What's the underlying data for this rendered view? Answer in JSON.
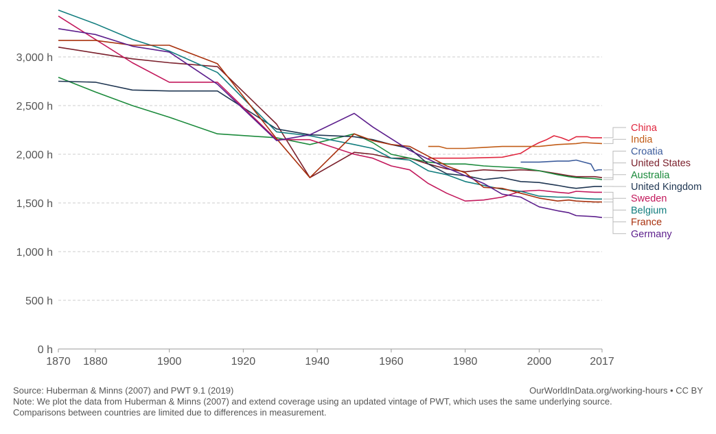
{
  "chart_data": {
    "type": "line",
    "title": "",
    "xlabel": "",
    "ylabel": "",
    "xlim": [
      1870,
      2017
    ],
    "ylim": [
      0,
      3500
    ],
    "grid": "horizontal dashed",
    "legend": "right, labels at line ends",
    "x_ticks": [
      1870,
      1880,
      1900,
      1920,
      1940,
      1960,
      1980,
      2000,
      2017
    ],
    "y_ticks": [
      {
        "value": 0,
        "label": "0 h"
      },
      {
        "value": 500,
        "label": "500 h"
      },
      {
        "value": 1000,
        "label": "1,000 h"
      },
      {
        "value": 1500,
        "label": "1,500 h"
      },
      {
        "value": 2000,
        "label": "2,000 h"
      },
      {
        "value": 2500,
        "label": "2,500 h"
      },
      {
        "value": 3000,
        "label": "3,000 h"
      }
    ],
    "series": [
      {
        "name": "China",
        "color": "#e0263e",
        "end_value": 2170,
        "points": [
          [
            1970,
            1960
          ],
          [
            1980,
            1960
          ],
          [
            1990,
            1970
          ],
          [
            1995,
            2010
          ],
          [
            1998,
            2080
          ],
          [
            2000,
            2120
          ],
          [
            2002,
            2150
          ],
          [
            2004,
            2190
          ],
          [
            2006,
            2170
          ],
          [
            2008,
            2140
          ],
          [
            2010,
            2180
          ],
          [
            2013,
            2180
          ],
          [
            2014,
            2170
          ],
          [
            2017,
            2170
          ]
        ]
      },
      {
        "name": "India",
        "color": "#c15c17",
        "end_value": 2110,
        "points": [
          [
            1970,
            2080
          ],
          [
            1973,
            2080
          ],
          [
            1975,
            2060
          ],
          [
            1980,
            2060
          ],
          [
            1985,
            2070
          ],
          [
            1990,
            2080
          ],
          [
            2000,
            2080
          ],
          [
            2005,
            2100
          ],
          [
            2010,
            2110
          ],
          [
            2012,
            2120
          ],
          [
            2017,
            2110
          ]
        ]
      },
      {
        "name": "Croatia",
        "color": "#3c5c9c",
        "end_value": 1840,
        "points": [
          [
            1995,
            1920
          ],
          [
            2000,
            1920
          ],
          [
            2005,
            1930
          ],
          [
            2008,
            1930
          ],
          [
            2010,
            1940
          ],
          [
            2012,
            1920
          ],
          [
            2014,
            1900
          ],
          [
            2015,
            1830
          ],
          [
            2016,
            1840
          ],
          [
            2017,
            1840
          ]
        ]
      },
      {
        "name": "United States",
        "color": "#7a1f2b",
        "end_value": 1760,
        "points": [
          [
            1870,
            3100
          ],
          [
            1880,
            3040
          ],
          [
            1890,
            2980
          ],
          [
            1900,
            2940
          ],
          [
            1913,
            2900
          ],
          [
            1929,
            2310
          ],
          [
            1938,
            1760
          ],
          [
            1950,
            2020
          ],
          [
            1955,
            2000
          ],
          [
            1960,
            1960
          ],
          [
            1965,
            1960
          ],
          [
            1970,
            1900
          ],
          [
            1975,
            1850
          ],
          [
            1980,
            1820
          ],
          [
            1985,
            1840
          ],
          [
            1990,
            1830
          ],
          [
            1995,
            1840
          ],
          [
            2000,
            1830
          ],
          [
            2005,
            1800
          ],
          [
            2008,
            1780
          ],
          [
            2010,
            1770
          ],
          [
            2015,
            1770
          ],
          [
            2017,
            1760
          ]
        ]
      },
      {
        "name": "Australia",
        "color": "#1b8a3b",
        "end_value": 1740,
        "points": [
          [
            1870,
            2790
          ],
          [
            1880,
            2640
          ],
          [
            1890,
            2500
          ],
          [
            1900,
            2380
          ],
          [
            1913,
            2210
          ],
          [
            1929,
            2170
          ],
          [
            1938,
            2100
          ],
          [
            1950,
            2210
          ],
          [
            1955,
            2120
          ],
          [
            1960,
            2000
          ],
          [
            1965,
            1960
          ],
          [
            1970,
            1920
          ],
          [
            1975,
            1900
          ],
          [
            1980,
            1900
          ],
          [
            1985,
            1880
          ],
          [
            1990,
            1870
          ],
          [
            1995,
            1860
          ],
          [
            2000,
            1830
          ],
          [
            2005,
            1790
          ],
          [
            2008,
            1770
          ],
          [
            2010,
            1760
          ],
          [
            2015,
            1750
          ],
          [
            2017,
            1740
          ]
        ]
      },
      {
        "name": "United Kingdom",
        "color": "#1f3652",
        "end_value": 1670,
        "points": [
          [
            1870,
            2750
          ],
          [
            1880,
            2740
          ],
          [
            1890,
            2660
          ],
          [
            1900,
            2650
          ],
          [
            1913,
            2650
          ],
          [
            1929,
            2260
          ],
          [
            1938,
            2200
          ],
          [
            1950,
            2180
          ],
          [
            1955,
            2150
          ],
          [
            1960,
            2100
          ],
          [
            1965,
            2060
          ],
          [
            1970,
            1900
          ],
          [
            1975,
            1800
          ],
          [
            1980,
            1780
          ],
          [
            1985,
            1740
          ],
          [
            1990,
            1760
          ],
          [
            1995,
            1720
          ],
          [
            2000,
            1710
          ],
          [
            2005,
            1680
          ],
          [
            2008,
            1660
          ],
          [
            2010,
            1650
          ],
          [
            2015,
            1670
          ],
          [
            2017,
            1670
          ]
        ]
      },
      {
        "name": "Sweden",
        "color": "#c2185b",
        "end_value": 1610,
        "points": [
          [
            1870,
            3420
          ],
          [
            1880,
            3180
          ],
          [
            1890,
            2940
          ],
          [
            1900,
            2740
          ],
          [
            1913,
            2740
          ],
          [
            1929,
            2150
          ],
          [
            1938,
            2150
          ],
          [
            1950,
            2000
          ],
          [
            1955,
            1960
          ],
          [
            1960,
            1880
          ],
          [
            1965,
            1840
          ],
          [
            1970,
            1700
          ],
          [
            1975,
            1600
          ],
          [
            1980,
            1520
          ],
          [
            1985,
            1530
          ],
          [
            1990,
            1560
          ],
          [
            1995,
            1620
          ],
          [
            2000,
            1630
          ],
          [
            2005,
            1610
          ],
          [
            2008,
            1600
          ],
          [
            2010,
            1620
          ],
          [
            2015,
            1610
          ],
          [
            2017,
            1610
          ]
        ]
      },
      {
        "name": "Belgium",
        "color": "#117d7e",
        "end_value": 1540,
        "points": [
          [
            1870,
            3480
          ],
          [
            1880,
            3340
          ],
          [
            1890,
            3180
          ],
          [
            1900,
            3060
          ],
          [
            1913,
            2840
          ],
          [
            1929,
            2230
          ],
          [
            1938,
            2190
          ],
          [
            1950,
            2100
          ],
          [
            1955,
            2060
          ],
          [
            1960,
            1960
          ],
          [
            1965,
            1940
          ],
          [
            1970,
            1830
          ],
          [
            1975,
            1790
          ],
          [
            1980,
            1720
          ],
          [
            1985,
            1680
          ],
          [
            1990,
            1640
          ],
          [
            1995,
            1620
          ],
          [
            2000,
            1570
          ],
          [
            2005,
            1560
          ],
          [
            2008,
            1560
          ],
          [
            2010,
            1550
          ],
          [
            2015,
            1540
          ],
          [
            2017,
            1540
          ]
        ]
      },
      {
        "name": "France",
        "color": "#a8300c",
        "end_value": 1510,
        "points": [
          [
            1870,
            3170
          ],
          [
            1880,
            3170
          ],
          [
            1890,
            3120
          ],
          [
            1900,
            3120
          ],
          [
            1913,
            2930
          ],
          [
            1929,
            2160
          ],
          [
            1938,
            1760
          ],
          [
            1950,
            2210
          ],
          [
            1955,
            2140
          ],
          [
            1960,
            2100
          ],
          [
            1965,
            2080
          ],
          [
            1970,
            1980
          ],
          [
            1975,
            1880
          ],
          [
            1980,
            1810
          ],
          [
            1985,
            1660
          ],
          [
            1990,
            1650
          ],
          [
            1995,
            1600
          ],
          [
            2000,
            1550
          ],
          [
            2005,
            1520
          ],
          [
            2008,
            1530
          ],
          [
            2010,
            1520
          ],
          [
            2015,
            1510
          ],
          [
            2017,
            1510
          ]
        ]
      },
      {
        "name": "Germany",
        "color": "#5c1e8c",
        "end_value": 1350,
        "points": [
          [
            1870,
            3290
          ],
          [
            1880,
            3230
          ],
          [
            1890,
            3110
          ],
          [
            1900,
            3050
          ],
          [
            1913,
            2720
          ],
          [
            1929,
            2140
          ],
          [
            1938,
            2200
          ],
          [
            1950,
            2420
          ],
          [
            1955,
            2280
          ],
          [
            1960,
            2160
          ],
          [
            1965,
            2040
          ],
          [
            1970,
            1950
          ],
          [
            1975,
            1860
          ],
          [
            1980,
            1780
          ],
          [
            1985,
            1700
          ],
          [
            1990,
            1590
          ],
          [
            1995,
            1560
          ],
          [
            2000,
            1460
          ],
          [
            2005,
            1420
          ],
          [
            2008,
            1400
          ],
          [
            2010,
            1370
          ],
          [
            2015,
            1360
          ],
          [
            2017,
            1350
          ]
        ]
      }
    ]
  },
  "footer": {
    "source": "Source: Huberman & Minns (2007) and PWT 9.1 (2019)",
    "credit": "OurWorldInData.org/working-hours • CC BY",
    "note_line1": "Note: We plot the data from Huberman & Minns (2007) and extend coverage using an updated vintage of PWT, which uses the same underlying source.",
    "note_line2": "Comparisons between countries are limited due to differences in measurement."
  }
}
